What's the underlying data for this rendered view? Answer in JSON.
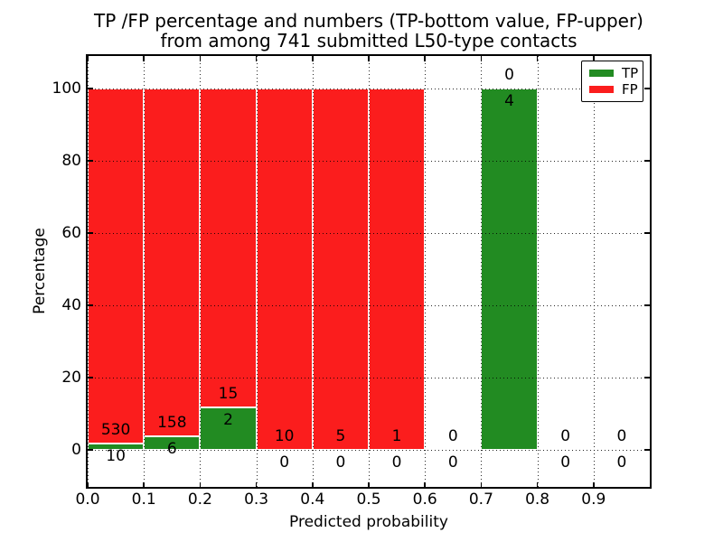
{
  "figure": {
    "title_line1": "TP /FP percentage and numbers (TP-bottom value, FP-upper)",
    "title_line2": "from among 741 submitted L50-type contacts"
  },
  "chart_data": {
    "type": "bar",
    "subtype": "stacked-percentage-histogram",
    "title": "TP /FP percentage and numbers (TP-bottom value, FP-upper)\nfrom among 741 submitted L50-type contacts",
    "xlabel": "Predicted probability",
    "ylabel": "Percentage",
    "xlim": [
      0.0,
      1.0
    ],
    "ylim": [
      -10.5,
      109.0
    ],
    "grid": "dotted",
    "legend_position": "upper right",
    "xtick_values": [
      0.0,
      0.1,
      0.2,
      0.3,
      0.4,
      0.5,
      0.6,
      0.7,
      0.8,
      0.9
    ],
    "xtick_labels": [
      "0.0",
      "0.1",
      "0.2",
      "0.3",
      "0.4",
      "0.5",
      "0.6",
      "0.7",
      "0.8",
      "0.9"
    ],
    "ytick_values": [
      0,
      20,
      40,
      60,
      80,
      100
    ],
    "ytick_labels": [
      "0",
      "20",
      "40",
      "60",
      "80",
      "100"
    ],
    "bin_width": 0.1,
    "total_contacts": 741,
    "bins": [
      {
        "x0": 0.0,
        "tp": 10,
        "fp": 530
      },
      {
        "x0": 0.1,
        "tp": 6,
        "fp": 158
      },
      {
        "x0": 0.2,
        "tp": 2,
        "fp": 15
      },
      {
        "x0": 0.3,
        "tp": 0,
        "fp": 10
      },
      {
        "x0": 0.4,
        "tp": 0,
        "fp": 5
      },
      {
        "x0": 0.5,
        "tp": 0,
        "fp": 1
      },
      {
        "x0": 0.6,
        "tp": 0,
        "fp": 0
      },
      {
        "x0": 0.7,
        "tp": 4,
        "fp": 0
      },
      {
        "x0": 0.8,
        "tp": 0,
        "fp": 0
      },
      {
        "x0": 0.9,
        "tp": 0,
        "fp": 0
      }
    ],
    "colors": {
      "tp": "#228b22",
      "fp": "#fb1d1d"
    },
    "legend": [
      {
        "label": "TP",
        "color": "#228b22"
      },
      {
        "label": "FP",
        "color": "#fb1d1d"
      }
    ]
  }
}
